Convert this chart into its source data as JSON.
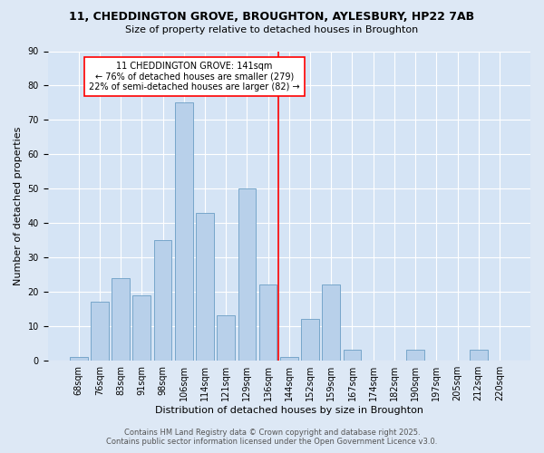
{
  "title_line1": "11, CHEDDINGTON GROVE, BROUGHTON, AYLESBURY, HP22 7AB",
  "title_line2": "Size of property relative to detached houses in Broughton",
  "xlabel": "Distribution of detached houses by size in Broughton",
  "ylabel": "Number of detached properties",
  "categories": [
    "68sqm",
    "76sqm",
    "83sqm",
    "91sqm",
    "98sqm",
    "106sqm",
    "114sqm",
    "121sqm",
    "129sqm",
    "136sqm",
    "144sqm",
    "152sqm",
    "159sqm",
    "167sqm",
    "174sqm",
    "182sqm",
    "190sqm",
    "197sqm",
    "205sqm",
    "212sqm",
    "220sqm"
  ],
  "values": [
    1,
    17,
    24,
    19,
    35,
    75,
    43,
    13,
    50,
    22,
    1,
    12,
    22,
    3,
    0,
    0,
    3,
    0,
    0,
    3,
    0
  ],
  "bar_color": "#b8d0ea",
  "bar_edge_color": "#6a9ec4",
  "vline_x": 9.5,
  "vline_color": "red",
  "annotation_text": "11 CHEDDINGTON GROVE: 141sqm\n← 76% of detached houses are smaller (279)\n22% of semi-detached houses are larger (82) →",
  "annotation_box_color": "white",
  "annotation_box_edge_color": "red",
  "ylim": [
    0,
    90
  ],
  "yticks": [
    0,
    10,
    20,
    30,
    40,
    50,
    60,
    70,
    80,
    90
  ],
  "footer_line1": "Contains HM Land Registry data © Crown copyright and database right 2025.",
  "footer_line2": "Contains public sector information licensed under the Open Government Licence v3.0.",
  "bg_color": "#dde8f5",
  "plot_bg_color": "#d5e4f5",
  "title_fontsize": 9,
  "subtitle_fontsize": 8,
  "xlabel_fontsize": 8,
  "ylabel_fontsize": 8,
  "tick_fontsize": 7,
  "annot_fontsize": 7,
  "footer_fontsize": 6
}
